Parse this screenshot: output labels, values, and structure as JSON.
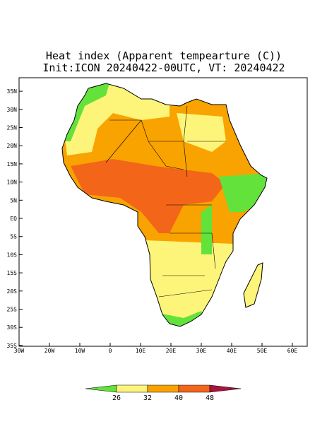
{
  "map": {
    "title": "Heat index (Apparent tempearture (C))",
    "subtitle": "Init:ICON 20240422-00UTC, VT: 20240422",
    "lon_ticks": [
      {
        "value": -30,
        "label": "30W"
      },
      {
        "value": -20,
        "label": "20W"
      },
      {
        "value": -10,
        "label": "10W"
      },
      0,
      {
        "value": 10,
        "label": "10E"
      },
      {
        "value": 20,
        "label": "20E"
      },
      {
        "value": 30,
        "label": "30E"
      },
      {
        "value": 40,
        "label": "40E"
      },
      {
        "value": 50,
        "label": "50E"
      },
      {
        "value": 60,
        "label": "60E"
      }
    ],
    "lat_ticks": [
      {
        "value": 35,
        "label": "35N"
      },
      {
        "value": 30,
        "label": "30N"
      },
      {
        "value": 25,
        "label": "25N"
      },
      {
        "value": 20,
        "label": "20N"
      },
      {
        "value": 15,
        "label": "15N"
      },
      {
        "value": 10,
        "label": "10N"
      },
      {
        "value": 5,
        "label": "5N"
      },
      {
        "value": 0,
        "label": "EQ"
      },
      {
        "value": -5,
        "label": "5S"
      },
      {
        "value": -10,
        "label": "10S"
      },
      {
        "value": -15,
        "label": "15S"
      },
      {
        "value": -20,
        "label": "20S"
      },
      {
        "value": -25,
        "label": "25S"
      },
      {
        "value": -30,
        "label": "30S"
      },
      {
        "value": -35,
        "label": "35S"
      }
    ],
    "colorbar": {
      "levels": [
        26,
        32,
        40,
        48
      ],
      "colors": [
        "#63e23c",
        "#fdf57a",
        "#f9a300",
        "#f3661a",
        "#a8143c"
      ]
    }
  }
}
